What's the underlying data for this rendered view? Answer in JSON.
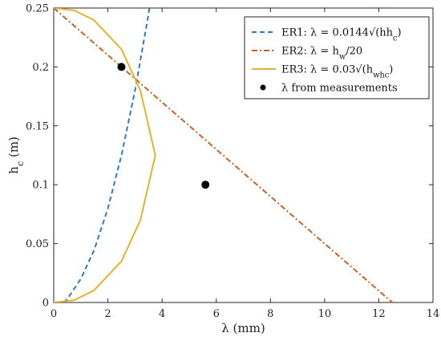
{
  "chart_data": {
    "type": "line",
    "xlabel": "λ (mm)",
    "ylabel": "h_c (m)",
    "xlim": [
      0,
      14
    ],
    "ylim": [
      0,
      0.25
    ],
    "x_ticks": [
      0,
      2,
      4,
      6,
      8,
      10,
      12,
      14
    ],
    "x_tick_labels": [
      "0",
      "2",
      "4",
      "6",
      "8",
      "10",
      "12",
      "14"
    ],
    "y_ticks": [
      0,
      0.05,
      0.1,
      0.15,
      0.2,
      0.25
    ],
    "y_tick_labels": [
      "0",
      "0.05",
      "0.1",
      "0.15",
      "0.2",
      "0.25"
    ],
    "grid": false,
    "legend_position": "top-right",
    "series": [
      {
        "name": "ER1: λ = 0.0144√(hh_c)",
        "style": "dashed",
        "color": "#2f7bbf",
        "points": [
          [
            0.36,
            0.0
          ],
          [
            0.5,
            0.003
          ],
          [
            1.0,
            0.02
          ],
          [
            1.5,
            0.045
          ],
          [
            2.0,
            0.08
          ],
          [
            2.5,
            0.125
          ],
          [
            3.0,
            0.18
          ],
          [
            3.5,
            0.245
          ],
          [
            3.53,
            0.25
          ]
        ]
      },
      {
        "name": "ER2: λ = h_w/20",
        "style": "dash-dot",
        "color": "#c8622a",
        "points": [
          [
            0,
            0.25
          ],
          [
            12.5,
            0.0
          ]
        ]
      },
      {
        "name": "ER3: λ = 0.03√(h_wh_c)",
        "style": "solid",
        "color": "#e6b22e",
        "points": [
          [
            0,
            0.0
          ],
          [
            0.75,
            0.002
          ],
          [
            1.47,
            0.01
          ],
          [
            2.5,
            0.035
          ],
          [
            3.2,
            0.07
          ],
          [
            3.6,
            0.11
          ],
          [
            3.75,
            0.125
          ],
          [
            3.6,
            0.14
          ],
          [
            3.2,
            0.18
          ],
          [
            2.5,
            0.215
          ],
          [
            1.47,
            0.24
          ],
          [
            0.75,
            0.248
          ],
          [
            0,
            0.25
          ]
        ]
      },
      {
        "name": "λ from measurements",
        "style": "markers",
        "color": "#000000",
        "points": [
          [
            2.5,
            0.2
          ],
          [
            5.6,
            0.1
          ]
        ]
      }
    ]
  }
}
